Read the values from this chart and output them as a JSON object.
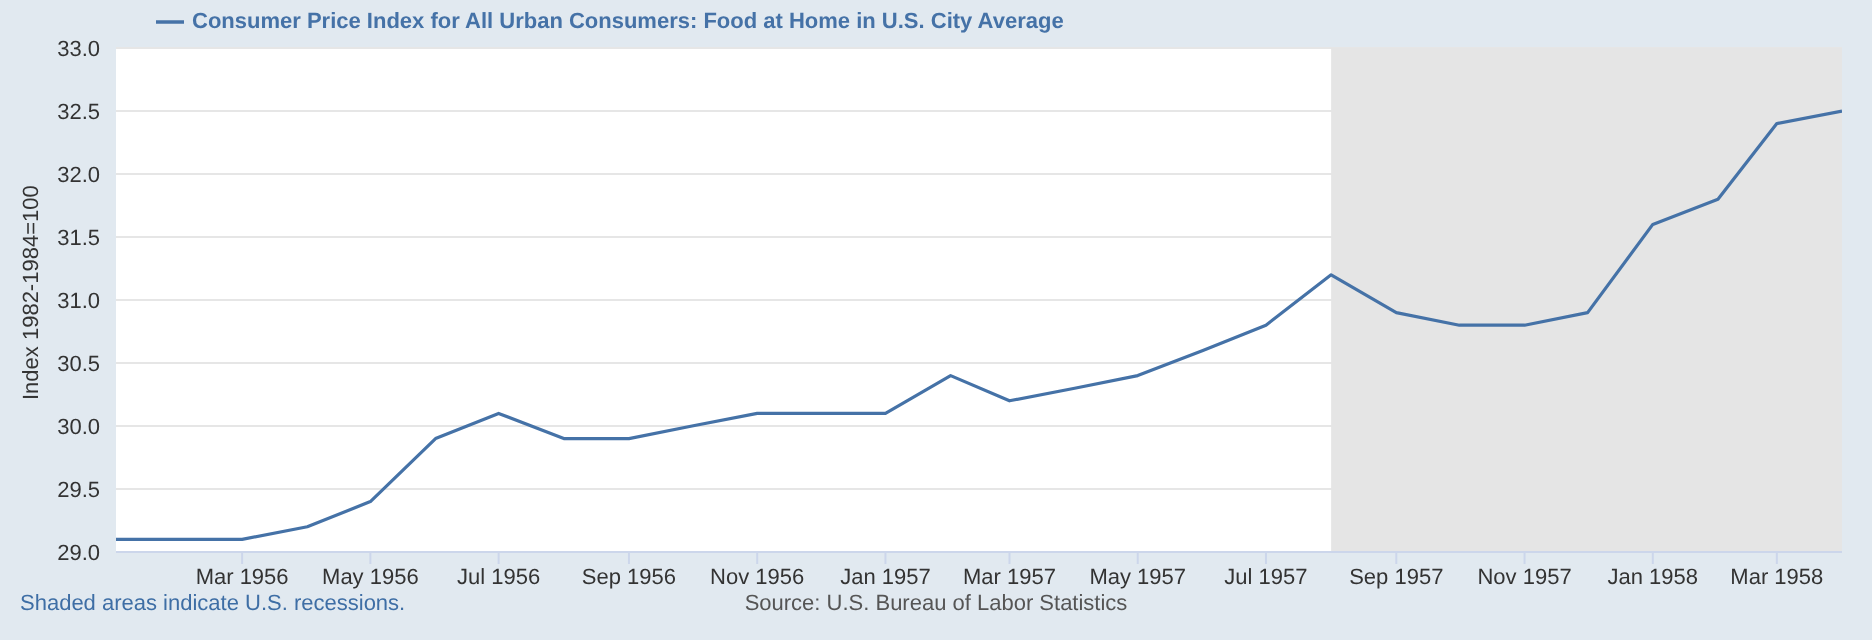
{
  "chart_data": {
    "type": "line",
    "ylabel": "Index 1982-1984=100",
    "x": [
      "1956-01",
      "1956-02",
      "1956-03",
      "1956-04",
      "1956-05",
      "1956-06",
      "1956-07",
      "1956-08",
      "1956-09",
      "1956-10",
      "1956-11",
      "1956-12",
      "1957-01",
      "1957-02",
      "1957-03",
      "1957-04",
      "1957-05",
      "1957-06",
      "1957-07",
      "1957-08",
      "1957-09",
      "1957-10",
      "1957-11",
      "1957-12",
      "1958-01",
      "1958-02",
      "1958-03",
      "1958-04"
    ],
    "series": [
      {
        "name": "Consumer Price Index for All Urban Consumers: Food at Home in U.S. City Average",
        "color": "#4572a7",
        "values": [
          29.1,
          29.1,
          29.1,
          29.2,
          29.4,
          29.9,
          30.1,
          29.9,
          29.9,
          30.0,
          30.1,
          30.1,
          30.1,
          30.4,
          30.2,
          30.3,
          30.4,
          30.6,
          30.8,
          31.2,
          30.9,
          30.8,
          30.8,
          30.9,
          31.6,
          31.8,
          32.4,
          32.5
        ]
      }
    ],
    "xlim": [
      "1956-01",
      "1958-04"
    ],
    "xticks": [
      {
        "value": "1956-03",
        "label": "Mar 1956"
      },
      {
        "value": "1956-05",
        "label": "May 1956"
      },
      {
        "value": "1956-07",
        "label": "Jul 1956"
      },
      {
        "value": "1956-09",
        "label": "Sep 1956"
      },
      {
        "value": "1956-11",
        "label": "Nov 1956"
      },
      {
        "value": "1957-01",
        "label": "Jan 1957"
      },
      {
        "value": "1957-03",
        "label": "Mar 1957"
      },
      {
        "value": "1957-05",
        "label": "May 1957"
      },
      {
        "value": "1957-07",
        "label": "Jul 1957"
      },
      {
        "value": "1957-09",
        "label": "Sep 1957"
      },
      {
        "value": "1957-11",
        "label": "Nov 1957"
      },
      {
        "value": "1958-01",
        "label": "Jan 1958"
      },
      {
        "value": "1958-03",
        "label": "Mar 1958"
      }
    ],
    "ylim": [
      29.0,
      33.0
    ],
    "yticks": [
      {
        "value": 29,
        "label": "29.0"
      },
      {
        "value": 29.5,
        "label": "29.5"
      },
      {
        "value": 30,
        "label": "30.0"
      },
      {
        "value": 30.5,
        "label": "30.5"
      },
      {
        "value": 31,
        "label": "31.0"
      },
      {
        "value": 31.5,
        "label": "31.5"
      },
      {
        "value": 32,
        "label": "32.0"
      },
      {
        "value": 32.5,
        "label": "32.5"
      },
      {
        "value": 33,
        "label": "33.0"
      }
    ],
    "bands": [
      {
        "axis": "x",
        "from": "1957-08",
        "to": "1958-04",
        "color": "#e5e5e5"
      }
    ],
    "grid": "y",
    "legend": "top",
    "marker": "none",
    "line_style": "solid",
    "annotations": [
      "Shaded areas indicate U.S. recessions.",
      "Source: U.S. Bureau of Labor Statistics"
    ]
  }
}
